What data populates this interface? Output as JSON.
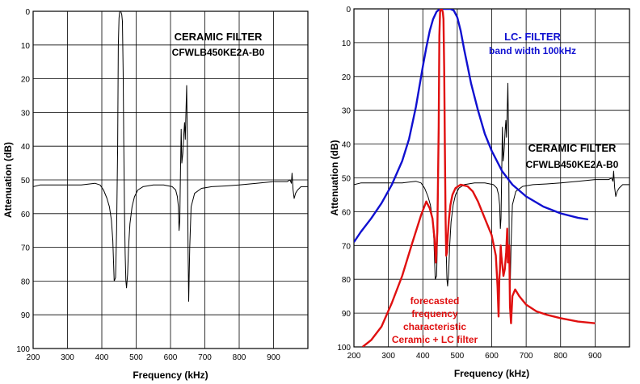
{
  "colors": {
    "black": "#000000",
    "blue": "#1010d0",
    "red": "#e01010",
    "grid": "#000000"
  },
  "chart_data": [
    {
      "type": "line",
      "xlabel": "Frequency (kHz)",
      "ylabel": "Attenuation (dB)",
      "xlim": [
        200,
        1000
      ],
      "ylim": [
        0,
        100
      ],
      "y_inverted": true,
      "x_ticks": [
        200,
        300,
        400,
        500,
        600,
        700,
        800,
        900
      ],
      "y_ticks": [
        0,
        10,
        20,
        30,
        40,
        50,
        60,
        70,
        80,
        90,
        100
      ],
      "grid": true,
      "annotations": [
        {
          "id": "ceramic_title",
          "lines": [
            "CERAMIC FILTER",
            "CFWLB450KE2A-B0"
          ],
          "color": "#000000",
          "anchor": [
            600,
            10
          ]
        }
      ],
      "series": [
        {
          "color": "#000000",
          "x": [
            200,
            220,
            260,
            300,
            340,
            380,
            395,
            405,
            415,
            422,
            428,
            432,
            436,
            440,
            443,
            446,
            448,
            450,
            452,
            455,
            458,
            460,
            462,
            464,
            466,
            468,
            470,
            472,
            475,
            478,
            482,
            488,
            495,
            505,
            520,
            550,
            580,
            605,
            615,
            620,
            623,
            625,
            627,
            629,
            631,
            633,
            636,
            639,
            641,
            643,
            645,
            647,
            649,
            651,
            653,
            656,
            660,
            670,
            690,
            720,
            760,
            800,
            850,
            900,
            940,
            948,
            952,
            954,
            957,
            960,
            964,
            970,
            980,
            1000
          ],
          "y": [
            52,
            51.5,
            51.5,
            51.5,
            51.5,
            51,
            51.5,
            53,
            55.5,
            58,
            62,
            68,
            80,
            79,
            65,
            40,
            10,
            2,
            0,
            0,
            1,
            3,
            18,
            40,
            60,
            72,
            80,
            82,
            78,
            70,
            63,
            58,
            55,
            53,
            52,
            51.5,
            51.5,
            52,
            53,
            55,
            58,
            65,
            62,
            48,
            35,
            45,
            42,
            36,
            33,
            38,
            30,
            22,
            38,
            70,
            86,
            70,
            58,
            54,
            52.5,
            52,
            51.8,
            51.5,
            51,
            50.5,
            50.5,
            50,
            51,
            48,
            53,
            55.5,
            54,
            53,
            52,
            52
          ]
        }
      ]
    },
    {
      "type": "line",
      "xlabel": "Frequency (kHz)",
      "ylabel": "Attenuation (dB)",
      "xlim": [
        200,
        1000
      ],
      "ylim": [
        0,
        100
      ],
      "y_inverted": true,
      "x_ticks": [
        200,
        300,
        400,
        500,
        600,
        700,
        800,
        900
      ],
      "y_ticks": [
        0,
        10,
        20,
        30,
        40,
        50,
        60,
        70,
        80,
        90,
        100
      ],
      "grid": true,
      "annotations": [
        {
          "id": "lc_title",
          "lines": [
            "LC- FILTER",
            "band width 100kHz"
          ],
          "color": "#1010d0",
          "anchor": [
            655,
            6
          ]
        },
        {
          "id": "ceramic_title",
          "lines": [
            "CERAMIC FILTER",
            "CFWLB450KE2A-B0"
          ],
          "color": "#000000",
          "anchor": [
            825,
            40
          ]
        },
        {
          "id": "forecast_title",
          "lines": [
            "forecasted",
            "frequency",
            "characteristic",
            "Ceramic + LC filter"
          ],
          "color": "#e01010",
          "anchor": [
            475,
            79
          ]
        }
      ],
      "series": [
        {
          "name": "",
          "color": "#000000",
          "x": [
            200,
            220,
            260,
            300,
            340,
            380,
            395,
            405,
            415,
            422,
            428,
            432,
            436,
            440,
            443,
            446,
            448,
            450,
            452,
            455,
            458,
            460,
            462,
            464,
            466,
            468,
            470,
            472,
            475,
            478,
            482,
            488,
            495,
            505,
            520,
            550,
            580,
            605,
            615,
            620,
            623,
            625,
            627,
            629,
            631,
            633,
            636,
            639,
            641,
            643,
            645,
            647,
            649,
            651,
            653,
            656,
            660,
            670,
            690,
            720,
            760,
            800,
            850,
            900,
            940,
            948,
            952,
            954,
            957,
            960,
            964,
            970,
            980,
            1000
          ],
          "y": [
            52,
            51.5,
            51.5,
            51.5,
            51.5,
            51,
            51.5,
            53,
            55.5,
            58,
            62,
            68,
            80,
            79,
            65,
            40,
            10,
            2,
            0,
            0,
            1,
            3,
            18,
            40,
            60,
            72,
            80,
            82,
            78,
            70,
            63,
            58,
            55,
            53,
            52,
            51.5,
            51.5,
            52,
            53,
            55,
            58,
            65,
            62,
            48,
            35,
            45,
            42,
            36,
            33,
            38,
            30,
            22,
            38,
            70,
            86,
            70,
            58,
            54,
            52.5,
            52,
            51.8,
            51.5,
            51,
            50.5,
            50.5,
            50,
            51,
            48,
            53,
            55.5,
            54,
            53,
            52,
            52
          ]
        },
        {
          "name": "",
          "color": "#1010d0",
          "x": [
            200,
            220,
            250,
            280,
            310,
            340,
            360,
            380,
            400,
            410,
            420,
            430,
            440,
            450,
            460,
            470,
            480,
            490,
            500,
            510,
            520,
            530,
            540,
            560,
            580,
            600,
            630,
            660,
            700,
            750,
            800,
            850,
            880
          ],
          "y": [
            69,
            66,
            62,
            57.5,
            52,
            45,
            38.5,
            29,
            17,
            11.5,
            6.5,
            3,
            0.8,
            0,
            0,
            0,
            0,
            0.5,
            2.5,
            6.5,
            12,
            17,
            22,
            30,
            37,
            42,
            48,
            52,
            55.5,
            58.5,
            60.5,
            61.8,
            62.3
          ]
        },
        {
          "name": "",
          "color": "#e01010",
          "x": [
            225,
            250,
            280,
            310,
            340,
            370,
            395,
            410,
            420,
            428,
            434,
            438,
            442,
            446,
            448,
            450,
            452,
            455,
            458,
            460,
            462,
            464,
            466,
            468,
            470,
            472,
            476,
            480,
            486,
            495,
            510,
            530,
            545,
            560,
            580,
            600,
            612,
            617,
            620,
            622,
            624,
            626,
            628,
            631,
            634,
            638,
            642,
            645,
            647,
            649,
            651,
            653,
            656,
            660,
            668,
            680,
            700,
            730,
            760,
            800,
            850,
            900
          ],
          "y": [
            100,
            98,
            94,
            87,
            79,
            69,
            61,
            57,
            59,
            62,
            68,
            75,
            66,
            35,
            8,
            1,
            0,
            0,
            1,
            3,
            18,
            40,
            62,
            73,
            72,
            68,
            62,
            58,
            55,
            53,
            52,
            52.5,
            54,
            57,
            62,
            67,
            73,
            82,
            91,
            80,
            77,
            70,
            73,
            76,
            79,
            77,
            72,
            65,
            75,
            72,
            70,
            88,
            93,
            85,
            83,
            85,
            87.5,
            89.5,
            90.5,
            91.5,
            92.5,
            93
          ]
        }
      ]
    }
  ]
}
